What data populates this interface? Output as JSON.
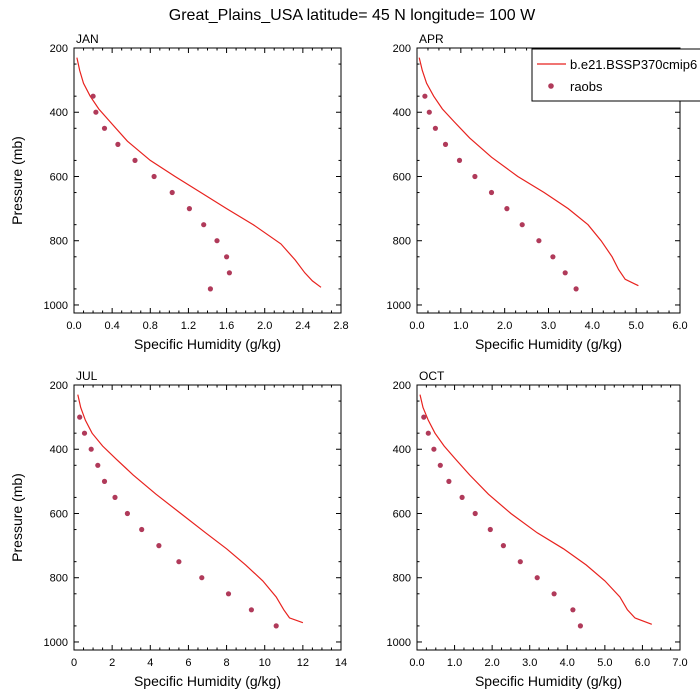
{
  "figure": {
    "title": "Great_Plains_USA  latitude= 45 N longitude= 100 W",
    "colors": {
      "model": "#e8221e",
      "obs": "#b03a5a",
      "axes": "#000000"
    }
  },
  "legend": {
    "placement": "top-right of APR panel",
    "model_label": "b.e21.BSSP370cmip6",
    "obs_label": "raobs"
  },
  "chart_data": [
    {
      "type": "line",
      "panel": "JAN",
      "xlabel": "Specific Humidity (g/kg)",
      "ylabel": "Pressure (mb)",
      "xlim": [
        0,
        2.8
      ],
      "ylim": [
        1025,
        200
      ],
      "y_reversed": true,
      "xticks": [
        "0.0",
        "0.4",
        "0.8",
        "1.2",
        "1.6",
        "2.0",
        "2.4",
        "2.8"
      ],
      "yticks": [
        "200",
        "400",
        "600",
        "800",
        "1000"
      ],
      "series": [
        {
          "name": "b.e21.BSSP370cmip6",
          "kind": "line",
          "x": [
            0.03,
            0.06,
            0.1,
            0.17,
            0.26,
            0.38,
            0.56,
            0.8,
            1.06,
            1.33,
            1.6,
            1.88,
            2.17,
            2.32,
            2.42,
            2.5,
            2.59
          ],
          "y": [
            230,
            270,
            310,
            350,
            390,
            430,
            490,
            550,
            600,
            650,
            700,
            750,
            810,
            860,
            900,
            925,
            945
          ]
        },
        {
          "name": "raobs",
          "kind": "scatter",
          "x": [
            0.2,
            0.23,
            0.32,
            0.46,
            0.64,
            0.84,
            1.03,
            1.21,
            1.36,
            1.5,
            1.6,
            1.63,
            1.43
          ],
          "y": [
            350,
            400,
            450,
            500,
            550,
            600,
            650,
            700,
            750,
            800,
            850,
            900,
            950
          ]
        }
      ]
    },
    {
      "type": "line",
      "panel": "APR",
      "xlabel": "Specific Humidity (g/kg)",
      "ylabel": "",
      "xlim": [
        0,
        6.0
      ],
      "ylim": [
        1025,
        200
      ],
      "y_reversed": true,
      "xticks": [
        "0.0",
        "1.0",
        "2.0",
        "3.0",
        "4.0",
        "5.0",
        "6.0"
      ],
      "yticks": [
        "200",
        "400",
        "600",
        "800",
        "1000"
      ],
      "series": [
        {
          "name": "b.e21.BSSP370cmip6",
          "kind": "line",
          "x": [
            0.05,
            0.12,
            0.22,
            0.38,
            0.58,
            0.85,
            1.2,
            1.7,
            2.3,
            2.9,
            3.45,
            3.9,
            4.2,
            4.45,
            4.6,
            4.75,
            5.05
          ],
          "y": [
            230,
            270,
            310,
            350,
            390,
            430,
            480,
            540,
            600,
            650,
            700,
            750,
            800,
            850,
            890,
            920,
            940
          ]
        },
        {
          "name": "raobs",
          "kind": "scatter",
          "x": [
            0.18,
            0.28,
            0.42,
            0.65,
            0.97,
            1.32,
            1.7,
            2.05,
            2.4,
            2.78,
            3.1,
            3.38,
            3.63
          ],
          "y": [
            350,
            400,
            450,
            500,
            550,
            600,
            650,
            700,
            750,
            800,
            850,
            900,
            950
          ]
        }
      ]
    },
    {
      "type": "line",
      "panel": "JUL",
      "xlabel": "Specific Humidity (g/kg)",
      "ylabel": "Pressure (mb)",
      "xlim": [
        0,
        14
      ],
      "ylim": [
        1025,
        200
      ],
      "y_reversed": true,
      "xticks": [
        "0",
        "2",
        "4",
        "6",
        "8",
        "10",
        "12",
        "14"
      ],
      "yticks": [
        "200",
        "400",
        "600",
        "800",
        "1000"
      ],
      "series": [
        {
          "name": "b.e21.BSSP370cmip6",
          "kind": "line",
          "x": [
            0.2,
            0.35,
            0.6,
            0.95,
            1.5,
            2.2,
            3.1,
            4.3,
            5.6,
            6.9,
            8.0,
            9.0,
            9.9,
            10.6,
            11.0,
            11.3,
            12.0
          ],
          "y": [
            230,
            270,
            310,
            350,
            390,
            430,
            480,
            540,
            600,
            660,
            710,
            760,
            810,
            860,
            900,
            925,
            940
          ]
        },
        {
          "name": "raobs",
          "kind": "scatter",
          "x": [
            0.3,
            0.55,
            0.9,
            1.25,
            1.6,
            2.15,
            2.8,
            3.55,
            4.45,
            5.5,
            6.7,
            8.1,
            9.3,
            10.6
          ],
          "y": [
            300,
            350,
            400,
            450,
            500,
            550,
            600,
            650,
            700,
            750,
            800,
            850,
            900,
            950
          ]
        }
      ]
    },
    {
      "type": "line",
      "panel": "OCT",
      "xlabel": "Specific Humidity (g/kg)",
      "ylabel": "",
      "xlim": [
        0,
        7.0
      ],
      "ylim": [
        1025,
        200
      ],
      "y_reversed": true,
      "xticks": [
        "0.0",
        "1.0",
        "2.0",
        "3.0",
        "4.0",
        "5.0",
        "6.0",
        "7.0"
      ],
      "yticks": [
        "200",
        "400",
        "600",
        "800",
        "1000"
      ],
      "series": [
        {
          "name": "b.e21.BSSP370cmip6",
          "kind": "line",
          "x": [
            0.08,
            0.16,
            0.3,
            0.48,
            0.72,
            1.02,
            1.4,
            1.9,
            2.5,
            3.2,
            3.9,
            4.5,
            5.0,
            5.4,
            5.6,
            5.8,
            6.25
          ],
          "y": [
            230,
            270,
            310,
            350,
            390,
            430,
            480,
            540,
            600,
            660,
            710,
            760,
            810,
            860,
            900,
            925,
            945
          ]
        },
        {
          "name": "raobs",
          "kind": "scatter",
          "x": [
            0.18,
            0.3,
            0.45,
            0.62,
            0.85,
            1.2,
            1.55,
            1.95,
            2.3,
            2.75,
            3.2,
            3.65,
            4.15,
            4.35
          ],
          "y": [
            300,
            350,
            400,
            450,
            500,
            550,
            600,
            650,
            700,
            750,
            800,
            850,
            900,
            950
          ]
        }
      ]
    }
  ]
}
